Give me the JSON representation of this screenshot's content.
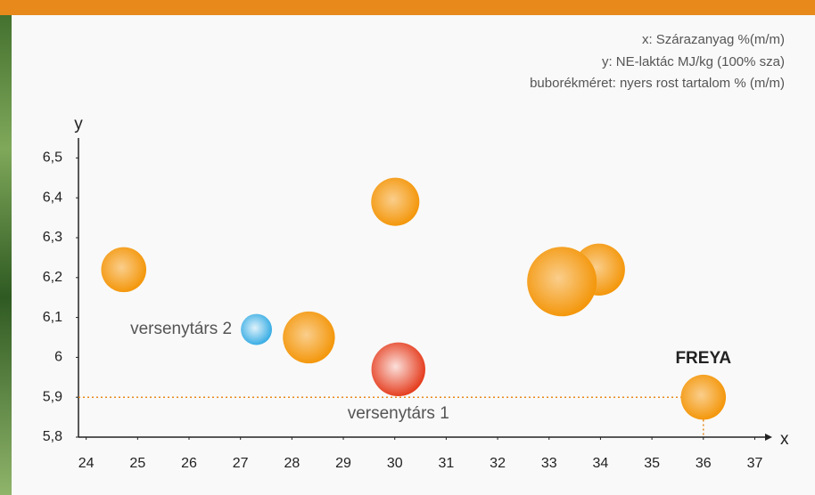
{
  "chart_data": {
    "type": "bubble",
    "notes": [
      "x: Szárazanyag %(m/m)",
      "y: NE-laktác MJ/kg (100% sza)",
      "buborékméret: nyers rost tartalom % (m/m)"
    ],
    "x_label": "x",
    "y_label": "y",
    "xlim": [
      23.85,
      37.2
    ],
    "ylim": [
      5.8,
      6.55
    ],
    "xticks": [
      24,
      25,
      26,
      27,
      28,
      29,
      30,
      31,
      32,
      33,
      34,
      35,
      36,
      37
    ],
    "yticks": [
      {
        "value": 5.8,
        "label": "5,8"
      },
      {
        "value": 5.9,
        "label": "5,9"
      },
      6,
      {
        "value": 6.1,
        "label": "6,1"
      },
      {
        "value": 6.2,
        "label": "6,2"
      },
      {
        "value": 6.3,
        "label": "6,3"
      },
      {
        "value": 6.4,
        "label": "6,4"
      },
      {
        "value": 6.5,
        "label": "6,5"
      }
    ],
    "points": [
      {
        "x": 24.73,
        "y": 6.22,
        "size": 10.5,
        "color": "#f39200"
      },
      {
        "x": 27.31,
        "y": 6.07,
        "size": 5,
        "color": "#2aa7e2",
        "label": "versenytárs 2"
      },
      {
        "x": 28.33,
        "y": 6.05,
        "size": 14,
        "color": "#f39200"
      },
      {
        "x": 30.01,
        "y": 6.39,
        "size": 12,
        "color": "#f39200"
      },
      {
        "x": 30.07,
        "y": 5.97,
        "size": 15,
        "color": "#e3300f",
        "label": "versenytárs 1"
      },
      {
        "x": 33.97,
        "y": 6.22,
        "size": 14,
        "color": "#f39200"
      },
      {
        "x": 33.25,
        "y": 6.19,
        "size": 25,
        "color": "#f39200"
      },
      {
        "x": 36.0,
        "y": 5.9,
        "size": 10.5,
        "color": "#f39200",
        "label": "FREYA"
      }
    ],
    "reference_color": "#e8891c"
  }
}
